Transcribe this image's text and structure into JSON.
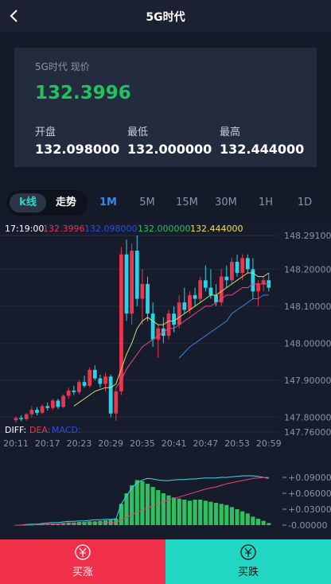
{
  "header": {
    "title": "5G时代"
  },
  "quote": {
    "label": "5G时代 现价",
    "price": "132.3996",
    "stats": [
      {
        "label": "开盘",
        "value": "132.098000"
      },
      {
        "label": "最低",
        "value": "132.000000"
      },
      {
        "label": "最高",
        "value": "132.444000"
      }
    ]
  },
  "tabs": {
    "modes": [
      "k线",
      "走势"
    ],
    "periods": [
      "1M",
      "5M",
      "15M",
      "30M",
      "1H",
      "1D"
    ]
  },
  "chart_data": [
    {
      "type": "candlestick",
      "time": "17:19:00",
      "categories": [
        "20:11",
        null,
        null,
        null,
        null,
        null,
        "20:17",
        null,
        null,
        null,
        null,
        null,
        "20:23",
        null,
        null,
        null,
        null,
        null,
        "20:29",
        null,
        null,
        null,
        null,
        null,
        "20:35",
        null,
        null,
        null,
        null,
        null,
        "20:41",
        null,
        null,
        null,
        null,
        null,
        "20:47",
        null,
        null,
        null,
        null,
        null,
        "20:53",
        null,
        null,
        null,
        null,
        null,
        "20:59"
      ],
      "ohlc": [
        [
          147.792,
          147.802,
          147.785,
          147.798
        ],
        [
          147.798,
          147.805,
          147.79,
          147.795
        ],
        [
          147.795,
          147.812,
          147.79,
          147.808
        ],
        [
          147.808,
          147.83,
          147.8,
          147.82
        ],
        [
          147.82,
          147.828,
          147.805,
          147.812
        ],
        [
          147.812,
          147.835,
          147.808,
          147.83
        ],
        [
          147.83,
          147.84,
          147.818,
          147.825
        ],
        [
          147.825,
          147.85,
          147.82,
          147.845
        ],
        [
          147.845,
          147.85,
          147.822,
          147.828
        ],
        [
          147.828,
          147.862,
          147.825,
          147.858
        ],
        [
          147.858,
          147.88,
          147.85,
          147.872
        ],
        [
          147.872,
          147.885,
          147.86,
          147.868
        ],
        [
          147.868,
          147.9,
          147.862,
          147.895
        ],
        [
          147.895,
          147.912,
          147.88,
          147.885
        ],
        [
          147.885,
          147.935,
          147.88,
          147.928
        ],
        [
          147.928,
          147.94,
          147.9,
          147.905
        ],
        [
          147.905,
          147.915,
          147.88,
          147.89
        ],
        [
          147.89,
          147.92,
          147.87,
          147.91
        ],
        [
          147.91,
          147.915,
          147.8,
          147.81
        ],
        [
          147.81,
          147.88,
          147.79,
          147.87
        ],
        [
          147.87,
          148.26,
          147.86,
          148.24
        ],
        [
          148.24,
          148.28,
          148.06,
          148.08
        ],
        [
          148.08,
          148.27,
          148.05,
          148.25
        ],
        [
          148.25,
          148.291,
          148.1,
          148.12
        ],
        [
          148.12,
          148.2,
          148.05,
          148.16
        ],
        [
          148.16,
          148.18,
          148.06,
          148.08
        ],
        [
          148.08,
          148.11,
          147.99,
          148.01
        ],
        [
          148.01,
          148.05,
          147.96,
          148.04
        ],
        [
          148.04,
          148.07,
          148.0,
          148.02
        ],
        [
          148.02,
          148.09,
          148.01,
          148.08
        ],
        [
          148.08,
          148.1,
          148.03,
          148.05
        ],
        [
          148.05,
          148.13,
          148.04,
          148.11
        ],
        [
          148.11,
          148.15,
          148.08,
          148.09
        ],
        [
          148.09,
          148.14,
          148.08,
          148.13
        ],
        [
          148.13,
          148.15,
          148.1,
          148.12
        ],
        [
          148.12,
          148.18,
          148.11,
          148.17
        ],
        [
          148.17,
          148.21,
          148.14,
          148.15
        ],
        [
          148.15,
          148.2,
          148.12,
          148.13
        ],
        [
          148.13,
          148.16,
          148.1,
          148.11
        ],
        [
          148.11,
          148.2,
          148.1,
          148.18
        ],
        [
          148.18,
          148.21,
          148.15,
          148.17
        ],
        [
          148.17,
          148.23,
          148.16,
          148.22
        ],
        [
          148.22,
          148.24,
          148.18,
          148.19
        ],
        [
          148.19,
          148.24,
          148.17,
          148.23
        ],
        [
          148.23,
          148.24,
          148.19,
          148.2
        ],
        [
          148.2,
          148.23,
          148.12,
          148.14
        ],
        [
          148.14,
          148.17,
          148.1,
          148.16
        ],
        [
          148.16,
          148.18,
          148.14,
          148.17
        ],
        [
          148.17,
          148.19,
          148.14,
          148.15
        ]
      ],
      "up_color": "#e8364e",
      "down_color": "#2ad4e6",
      "lines": [
        {
          "color": "#c8e06a",
          "values": [
            null,
            null,
            null,
            null,
            null,
            null,
            null,
            null,
            null,
            null,
            null,
            147.83,
            147.84,
            147.85,
            147.86,
            147.87,
            147.875,
            147.88,
            147.88,
            147.89,
            147.93,
            147.97,
            148.0,
            148.04,
            148.06,
            148.07,
            148.06,
            148.05,
            148.05,
            148.06,
            148.06,
            148.07,
            148.08,
            148.09,
            148.1,
            148.11,
            148.12,
            148.13,
            148.13,
            148.14,
            148.15,
            148.16,
            148.17,
            148.18,
            148.19,
            148.19,
            148.18,
            148.18,
            148.19
          ]
        },
        {
          "color": "#e8487a",
          "values": [
            null,
            null,
            null,
            null,
            null,
            null,
            null,
            null,
            null,
            null,
            null,
            null,
            null,
            null,
            null,
            null,
            null,
            null,
            null,
            147.88,
            147.9,
            147.93,
            147.95,
            147.97,
            147.99,
            148.0,
            148.01,
            148.02,
            148.03,
            148.04,
            148.04,
            148.05,
            148.06,
            148.07,
            148.08,
            148.09,
            148.1,
            148.1,
            148.11,
            148.12,
            148.13,
            148.13,
            148.14,
            148.15,
            148.15,
            148.16,
            148.16,
            148.16,
            148.16
          ]
        },
        {
          "color": "#3b82e8",
          "values": [
            null,
            null,
            null,
            null,
            null,
            null,
            null,
            null,
            null,
            null,
            null,
            null,
            null,
            null,
            null,
            null,
            null,
            null,
            null,
            null,
            null,
            null,
            null,
            null,
            null,
            null,
            null,
            null,
            null,
            null,
            null,
            147.96,
            147.975,
            147.99,
            148.0,
            148.01,
            148.02,
            148.03,
            148.04,
            148.05,
            148.06,
            148.08,
            148.09,
            148.1,
            148.11,
            148.12,
            148.12,
            148.13,
            148.13
          ]
        }
      ],
      "ylim": [
        147.76,
        148.291
      ],
      "yticks": [
        {
          "value": 148.291,
          "label": "148.29100"
        },
        {
          "value": 148.2,
          "label": "148.20000"
        },
        {
          "value": 148.1,
          "label": "148.10000"
        },
        {
          "value": 148.0,
          "label": "148.00000"
        },
        {
          "value": 147.9,
          "label": "147.90000"
        },
        {
          "value": 147.8,
          "label": "147.80000"
        },
        {
          "value": 147.76,
          "label": "147.76000"
        }
      ]
    },
    {
      "type": "macd",
      "series": [
        {
          "name": "DIFF:",
          "color": "#3fd8f0",
          "legend_color": "#ffffff",
          "values": [
            0,
            0.0,
            0.001,
            0.002,
            0.002,
            0.003,
            0.004,
            0.005,
            0.005,
            0.006,
            0.007,
            0.007,
            0.008,
            0.008,
            0.009,
            0.01,
            0.01,
            0.011,
            0.011,
            0.012,
            0.04,
            0.055,
            0.07,
            0.08,
            0.085,
            0.088,
            0.087,
            0.085,
            0.084,
            0.084,
            0.085,
            0.086,
            0.086,
            0.087,
            0.087,
            0.088,
            0.089,
            0.089,
            0.089,
            0.09,
            0.09,
            0.091,
            0.092,
            0.093,
            0.093,
            0.093,
            0.092,
            0.09,
            0.088
          ]
        },
        {
          "name": "DEA:",
          "color": "#e8487a",
          "legend_color": "#e8364e",
          "values": [
            0,
            0,
            0,
            0.001,
            0.001,
            0.001,
            0.002,
            0.002,
            0.002,
            0.003,
            0.003,
            0.003,
            0.003,
            0.004,
            0.004,
            0.004,
            0.004,
            0.005,
            0.005,
            0.005,
            0.01,
            0.015,
            0.02,
            0.024,
            0.028,
            0.032,
            0.036,
            0.04,
            0.044,
            0.047,
            0.05,
            0.053,
            0.056,
            0.059,
            0.062,
            0.065,
            0.068,
            0.07,
            0.072,
            0.075,
            0.078,
            0.08,
            0.082,
            0.084,
            0.086,
            0.088,
            0.089,
            0.09,
            0.09
          ]
        },
        {
          "name": "MACD:",
          "color": "#2fbf5f",
          "legend_color": "#2a4de8",
          "values": [
            0,
            0,
            0,
            0,
            0.001,
            0.002,
            0.002,
            0.003,
            0.003,
            0.004,
            0.005,
            0.005,
            0.006,
            0.006,
            0.007,
            0.007,
            0.008,
            0.009,
            0.01,
            0.012,
            0.04,
            0.06,
            0.075,
            0.085,
            0.083,
            0.078,
            0.072,
            0.066,
            0.06,
            0.056,
            0.052,
            0.05,
            0.048,
            0.046,
            0.048,
            0.048,
            0.046,
            0.044,
            0.042,
            0.04,
            0.038,
            0.034,
            0.03,
            0.026,
            0.022,
            0.016,
            0.012,
            0.008,
            0.004
          ]
        }
      ],
      "ylim": [
        -0.0075,
        0.105
      ],
      "yticks": [
        {
          "value": 0.09,
          "label": "+0.09000"
        },
        {
          "value": 0.06,
          "label": "+0.06000"
        },
        {
          "value": 0.03,
          "label": "+0.03000"
        },
        {
          "value": 0,
          "label": "-0.00000"
        }
      ]
    }
  ],
  "buttons": [
    "买涨",
    "买跌"
  ]
}
